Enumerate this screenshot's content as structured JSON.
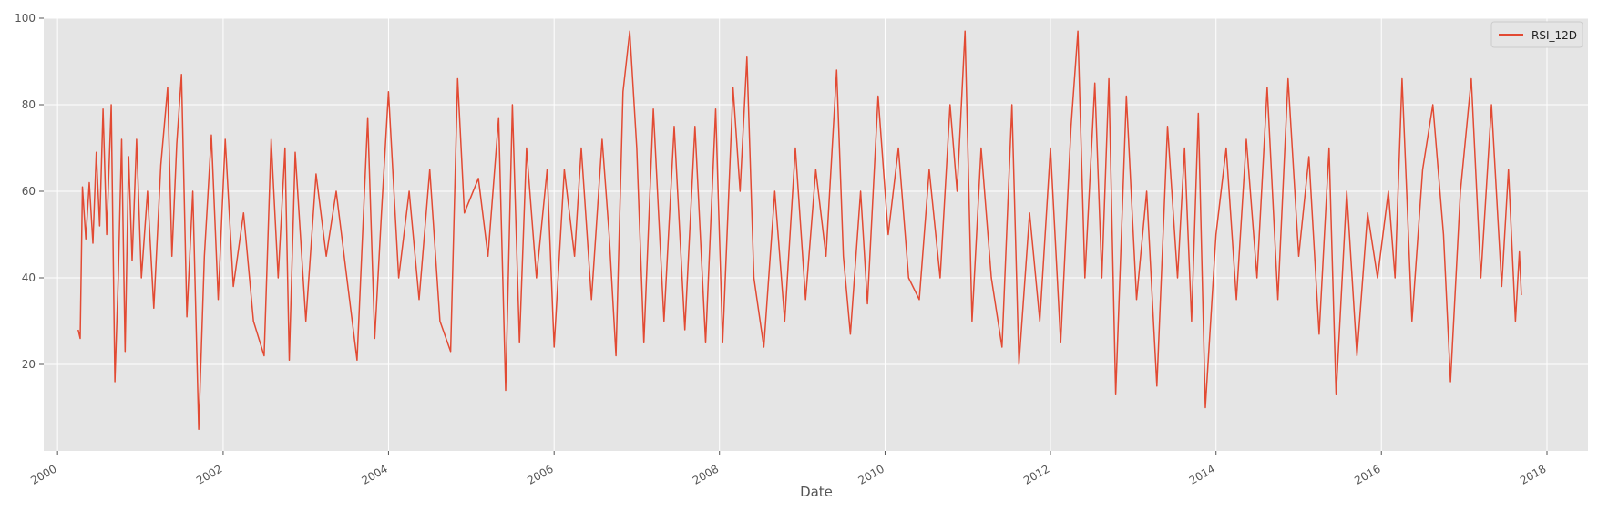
{
  "chart_data": {
    "type": "line",
    "title": "",
    "xlabel": "Date",
    "ylabel": "",
    "xlim": [
      "1999-11-01",
      "2018-07-01"
    ],
    "ylim": [
      0,
      100
    ],
    "grid": true,
    "legend_position": "top-right",
    "style": "ggplot",
    "x_tick_labels": [
      "2000",
      "2002",
      "2004",
      "2006",
      "2008",
      "2010",
      "2012",
      "2014",
      "2016",
      "2018"
    ],
    "y_tick_labels": [
      "20",
      "40",
      "60",
      "80",
      "100"
    ],
    "series": [
      {
        "name": "RSI_12D",
        "color": "#E24A33",
        "points": [
          [
            "2000-04-01",
            28
          ],
          [
            "2000-04-10",
            26
          ],
          [
            "2000-04-20",
            61
          ],
          [
            "2000-05-05",
            49
          ],
          [
            "2000-05-20",
            62
          ],
          [
            "2000-06-05",
            48
          ],
          [
            "2000-06-20",
            69
          ],
          [
            "2000-07-05",
            52
          ],
          [
            "2000-07-20",
            79
          ],
          [
            "2000-08-05",
            50
          ],
          [
            "2000-08-25",
            80
          ],
          [
            "2000-09-10",
            16
          ],
          [
            "2000-09-25",
            40
          ],
          [
            "2000-10-10",
            72
          ],
          [
            "2000-10-25",
            23
          ],
          [
            "2000-11-10",
            68
          ],
          [
            "2000-11-25",
            44
          ],
          [
            "2000-12-15",
            72
          ],
          [
            "2001-01-05",
            40
          ],
          [
            "2001-02-01",
            60
          ],
          [
            "2001-03-01",
            33
          ],
          [
            "2001-04-01",
            66
          ],
          [
            "2001-05-01",
            84
          ],
          [
            "2001-05-20",
            45
          ],
          [
            "2001-06-10",
            71
          ],
          [
            "2001-07-01",
            87
          ],
          [
            "2001-07-25",
            31
          ],
          [
            "2001-08-20",
            60
          ],
          [
            "2001-09-15",
            5
          ],
          [
            "2001-10-10",
            45
          ],
          [
            "2001-11-10",
            73
          ],
          [
            "2001-12-10",
            35
          ],
          [
            "2002-01-10",
            72
          ],
          [
            "2002-02-15",
            38
          ],
          [
            "2002-04-01",
            55
          ],
          [
            "2002-05-15",
            30
          ],
          [
            "2002-07-01",
            22
          ],
          [
            "2002-08-01",
            72
          ],
          [
            "2002-09-01",
            40
          ],
          [
            "2002-10-01",
            70
          ],
          [
            "2002-10-20",
            21
          ],
          [
            "2002-11-15",
            69
          ],
          [
            "2003-01-01",
            30
          ],
          [
            "2003-02-15",
            64
          ],
          [
            "2003-04-01",
            45
          ],
          [
            "2003-05-15",
            60
          ],
          [
            "2003-07-01",
            40
          ],
          [
            "2003-08-15",
            21
          ],
          [
            "2003-10-01",
            77
          ],
          [
            "2003-11-01",
            26
          ],
          [
            "2003-12-01",
            55
          ],
          [
            "2004-01-01",
            83
          ],
          [
            "2004-02-15",
            40
          ],
          [
            "2004-04-01",
            60
          ],
          [
            "2004-05-15",
            35
          ],
          [
            "2004-07-01",
            65
          ],
          [
            "2004-08-15",
            30
          ],
          [
            "2004-10-01",
            23
          ],
          [
            "2004-11-01",
            86
          ],
          [
            "2004-12-01",
            55
          ],
          [
            "2005-02-01",
            63
          ],
          [
            "2005-03-15",
            45
          ],
          [
            "2005-05-01",
            77
          ],
          [
            "2005-06-01",
            14
          ],
          [
            "2005-07-01",
            80
          ],
          [
            "2005-08-01",
            25
          ],
          [
            "2005-09-01",
            70
          ],
          [
            "2005-10-15",
            40
          ],
          [
            "2005-12-01",
            65
          ],
          [
            "2006-01-01",
            24
          ],
          [
            "2006-02-15",
            65
          ],
          [
            "2006-04-01",
            45
          ],
          [
            "2006-05-01",
            70
          ],
          [
            "2006-06-15",
            35
          ],
          [
            "2006-08-01",
            72
          ],
          [
            "2006-09-01",
            50
          ],
          [
            "2006-10-01",
            22
          ],
          [
            "2006-11-01",
            83
          ],
          [
            "2006-12-01",
            97
          ],
          [
            "2007-01-01",
            70
          ],
          [
            "2007-02-01",
            25
          ],
          [
            "2007-03-15",
            79
          ],
          [
            "2007-05-01",
            30
          ],
          [
            "2007-06-15",
            75
          ],
          [
            "2007-08-01",
            28
          ],
          [
            "2007-09-15",
            75
          ],
          [
            "2007-11-01",
            25
          ],
          [
            "2007-12-15",
            79
          ],
          [
            "2008-01-15",
            25
          ],
          [
            "2008-03-01",
            84
          ],
          [
            "2008-04-01",
            60
          ],
          [
            "2008-05-01",
            91
          ],
          [
            "2008-06-01",
            40
          ],
          [
            "2008-07-15",
            24
          ],
          [
            "2008-09-01",
            60
          ],
          [
            "2008-10-15",
            30
          ],
          [
            "2008-12-01",
            70
          ],
          [
            "2009-01-15",
            35
          ],
          [
            "2009-03-01",
            65
          ],
          [
            "2009-04-15",
            45
          ],
          [
            "2009-06-01",
            88
          ],
          [
            "2009-07-01",
            45
          ],
          [
            "2009-08-01",
            27
          ],
          [
            "2009-09-15",
            60
          ],
          [
            "2009-10-15",
            34
          ],
          [
            "2009-12-01",
            82
          ],
          [
            "2010-01-15",
            50
          ],
          [
            "2010-03-01",
            70
          ],
          [
            "2010-04-15",
            40
          ],
          [
            "2010-06-01",
            35
          ],
          [
            "2010-07-15",
            65
          ],
          [
            "2010-09-01",
            40
          ],
          [
            "2010-10-15",
            80
          ],
          [
            "2010-11-15",
            60
          ],
          [
            "2010-12-20",
            97
          ],
          [
            "2011-01-20",
            30
          ],
          [
            "2011-03-01",
            70
          ],
          [
            "2011-04-15",
            40
          ],
          [
            "2011-06-01",
            24
          ],
          [
            "2011-07-15",
            80
          ],
          [
            "2011-08-15",
            20
          ],
          [
            "2011-10-01",
            55
          ],
          [
            "2011-11-15",
            30
          ],
          [
            "2012-01-01",
            70
          ],
          [
            "2012-02-15",
            25
          ],
          [
            "2012-04-01",
            75
          ],
          [
            "2012-05-01",
            97
          ],
          [
            "2012-06-01",
            40
          ],
          [
            "2012-07-15",
            85
          ],
          [
            "2012-08-15",
            40
          ],
          [
            "2012-09-15",
            86
          ],
          [
            "2012-10-15",
            13
          ],
          [
            "2012-12-01",
            82
          ],
          [
            "2013-01-15",
            35
          ],
          [
            "2013-03-01",
            60
          ],
          [
            "2013-04-15",
            15
          ],
          [
            "2013-06-01",
            75
          ],
          [
            "2013-07-15",
            40
          ],
          [
            "2013-08-15",
            70
          ],
          [
            "2013-09-15",
            30
          ],
          [
            "2013-10-15",
            78
          ],
          [
            "2013-11-15",
            10
          ],
          [
            "2014-01-01",
            50
          ],
          [
            "2014-02-15",
            70
          ],
          [
            "2014-04-01",
            35
          ],
          [
            "2014-05-15",
            72
          ],
          [
            "2014-07-01",
            40
          ],
          [
            "2014-08-15",
            84
          ],
          [
            "2014-10-01",
            35
          ],
          [
            "2014-11-15",
            86
          ],
          [
            "2015-01-01",
            45
          ],
          [
            "2015-02-15",
            68
          ],
          [
            "2015-04-01",
            27
          ],
          [
            "2015-05-15",
            70
          ],
          [
            "2015-06-15",
            13
          ],
          [
            "2015-08-01",
            60
          ],
          [
            "2015-09-15",
            22
          ],
          [
            "2015-11-01",
            55
          ],
          [
            "2015-12-15",
            40
          ],
          [
            "2016-02-01",
            60
          ],
          [
            "2016-03-01",
            40
          ],
          [
            "2016-04-01",
            86
          ],
          [
            "2016-05-15",
            30
          ],
          [
            "2016-07-01",
            65
          ],
          [
            "2016-08-15",
            80
          ],
          [
            "2016-10-01",
            50
          ],
          [
            "2016-11-01",
            16
          ],
          [
            "2016-12-15",
            60
          ],
          [
            "2017-02-01",
            86
          ],
          [
            "2017-03-15",
            40
          ],
          [
            "2017-05-01",
            80
          ],
          [
            "2017-06-15",
            38
          ],
          [
            "2017-07-15",
            65
          ],
          [
            "2017-08-15",
            30
          ],
          [
            "2017-09-01",
            46
          ],
          [
            "2017-09-10",
            36
          ]
        ]
      }
    ]
  }
}
